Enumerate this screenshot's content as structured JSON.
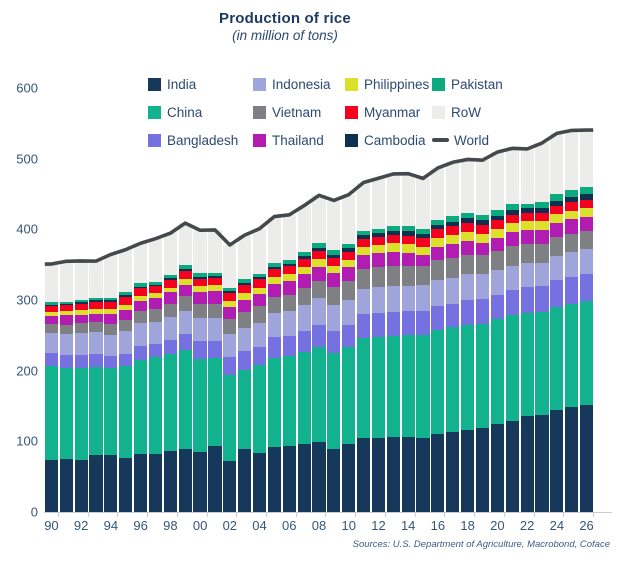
{
  "header": {
    "title": "Production of rice",
    "subtitle": "(in million of tons)"
  },
  "footer": {
    "sources": "Sources: U.S. Department of Agriculture, Macrobond, Coface"
  },
  "colors": {
    "title_text": "#1e3a5f",
    "axis_text": "#375679",
    "legend_text": "#2c4a72",
    "axis_line": "#c9cdd2",
    "background": "#ffffff"
  },
  "chart_data": {
    "type": "bar",
    "stacked": true,
    "title": "Production of rice",
    "subtitle": "(in million of tons)",
    "xlabel": "",
    "ylabel": "",
    "ylim": [
      0,
      600
    ],
    "yticks": [
      0,
      100,
      200,
      300,
      400,
      500,
      600
    ],
    "grid": false,
    "years": [
      1990,
      1991,
      1992,
      1993,
      1994,
      1995,
      1996,
      1997,
      1998,
      1999,
      2000,
      2001,
      2002,
      2003,
      2004,
      2005,
      2006,
      2007,
      2008,
      2009,
      2010,
      2011,
      2012,
      2013,
      2014,
      2015,
      2016,
      2017,
      2018,
      2019,
      2020,
      2021,
      2022,
      2023,
      2024,
      2025,
      2026
    ],
    "x_tick_labels": [
      "90",
      "92",
      "94",
      "96",
      "98",
      "00",
      "02",
      "04",
      "06",
      "08",
      "10",
      "12",
      "14",
      "16",
      "18",
      "20",
      "22",
      "24",
      "26"
    ],
    "stack_order": [
      "India",
      "China",
      "Bangladesh",
      "Indonesia",
      "Vietnam",
      "Thailand",
      "Philippines",
      "Myanmar",
      "Cambodia",
      "Pakistan",
      "RoW"
    ],
    "series": [
      {
        "name": "India",
        "color": "#16395b",
        "values": [
          74.3,
          74.7,
          72.9,
          80.3,
          81.2,
          77.0,
          81.7,
          82.5,
          86.1,
          89.7,
          85.0,
          93.3,
          71.8,
          88.5,
          83.1,
          91.8,
          93.4,
          96.7,
          99.2,
          89.1,
          96.0,
          105.3,
          105.2,
          106.6,
          105.5,
          104.4,
          109.7,
          112.8,
          116.5,
          118.9,
          124.4,
          129.5,
          135.8,
          137.8,
          145.0,
          149.0,
          152.0
        ]
      },
      {
        "name": "China",
        "color": "#13b28e",
        "values": [
          132.5,
          129.6,
          130.4,
          125.0,
          122.5,
          129.0,
          134.0,
          137.0,
          137.8,
          138.9,
          131.5,
          124.3,
          122.2,
          112.5,
          125.4,
          126.4,
          127.2,
          130.2,
          134.3,
          136.6,
          137.0,
          140.7,
          143.0,
          142.5,
          144.6,
          145.8,
          147.8,
          148.9,
          148.5,
          146.7,
          148.3,
          148.9,
          145.9,
          144.6,
          145.3,
          146.0,
          146.5
        ]
      },
      {
        "name": "Bangladesh",
        "color": "#7671e0",
        "values": [
          17.9,
          18.3,
          18.3,
          18.0,
          16.8,
          17.7,
          18.9,
          18.9,
          19.7,
          23.1,
          25.1,
          24.3,
          25.2,
          26.2,
          25.6,
          28.8,
          29.0,
          28.8,
          31.2,
          31.0,
          31.7,
          33.7,
          33.8,
          34.4,
          34.5,
          34.5,
          34.6,
          32.7,
          34.9,
          35.9,
          34.6,
          35.9,
          36.4,
          37.0,
          37.6,
          38.0,
          38.5
        ]
      },
      {
        "name": "Indonesia",
        "color": "#9fa5db",
        "values": [
          29.0,
          29.4,
          31.4,
          31.0,
          30.1,
          32.3,
          33.2,
          31.2,
          32.1,
          33.4,
          32.4,
          32.0,
          32.4,
          33.5,
          34.1,
          34.9,
          35.3,
          37.0,
          38.3,
          36.4,
          35.5,
          36.5,
          36.6,
          36.3,
          35.6,
          36.2,
          36.9,
          37.0,
          36.7,
          34.7,
          34.5,
          34.4,
          34.0,
          33.0,
          34.6,
          34.6,
          34.6
        ]
      },
      {
        "name": "Vietnam",
        "color": "#7e8083",
        "values": [
          12.4,
          13.1,
          14.0,
          14.3,
          15.5,
          16.2,
          16.8,
          17.6,
          19.4,
          20.9,
          20.5,
          21.0,
          21.5,
          21.9,
          22.7,
          22.8,
          22.9,
          24.4,
          24.4,
          25.0,
          26.4,
          27.1,
          27.5,
          28.0,
          28.2,
          27.6,
          27.4,
          27.7,
          27.3,
          27.3,
          27.4,
          27.3,
          27.0,
          26.6,
          26.5,
          26.4,
          26.3
        ]
      },
      {
        "name": "Thailand",
        "color": "#b31cb3",
        "values": [
          11.2,
          13.2,
          12.5,
          12.3,
          13.9,
          14.4,
          14.2,
          15.6,
          15.6,
          16.0,
          17.0,
          17.5,
          17.2,
          18.0,
          17.4,
          18.2,
          18.9,
          19.8,
          19.9,
          20.3,
          20.3,
          20.5,
          20.2,
          20.5,
          18.8,
          15.8,
          19.2,
          20.6,
          20.3,
          17.7,
          18.9,
          19.9,
          20.2,
          20.0,
          20.1,
          20.1,
          20.0
        ]
      },
      {
        "name": "Philippines",
        "color": "#dce02a",
        "values": [
          6.1,
          6.2,
          6.0,
          6.2,
          6.9,
          6.9,
          7.4,
          6.5,
          6.8,
          7.7,
          8.1,
          8.4,
          8.5,
          9.2,
          9.4,
          9.8,
          9.8,
          10.5,
          10.8,
          9.8,
          10.5,
          10.7,
          11.4,
          11.9,
          11.9,
          11.0,
          11.7,
          12.2,
          11.7,
          11.9,
          12.4,
          12.5,
          12.4,
          12.3,
          12.2,
          12.3,
          12.4
        ]
      },
      {
        "name": "Myanmar",
        "color": "#f5001e",
        "values": [
          8.6,
          8.2,
          9.3,
          10.4,
          11.0,
          11.2,
          10.8,
          10.3,
          10.9,
          11.6,
          10.8,
          10.9,
          11.1,
          11.9,
          12.2,
          11.0,
          11.1,
          11.3,
          11.4,
          11.2,
          11.1,
          11.5,
          11.7,
          11.9,
          12.2,
          12.2,
          12.6,
          13.0,
          13.2,
          13.1,
          12.6,
          12.3,
          12.0,
          12.0,
          12.0,
          12.0,
          12.0
        ]
      },
      {
        "name": "Cambodia",
        "color": "#0c3050",
        "values": [
          1.6,
          1.7,
          1.8,
          1.9,
          2.0,
          2.2,
          2.2,
          2.2,
          2.3,
          2.5,
          2.5,
          2.6,
          2.4,
          2.9,
          2.6,
          3.8,
          4.0,
          4.2,
          4.5,
          4.8,
          5.2,
          5.4,
          5.6,
          5.8,
          5.9,
          5.8,
          6.1,
          6.3,
          6.5,
          6.6,
          5.7,
          6.3,
          6.7,
          7.0,
          7.2,
          7.3,
          7.5
        ]
      },
      {
        "name": "Pakistan",
        "color": "#0daa80",
        "values": [
          3.3,
          3.4,
          3.1,
          4.0,
          3.4,
          4.0,
          4.3,
          4.3,
          4.7,
          5.2,
          4.8,
          3.9,
          4.5,
          4.8,
          5.0,
          5.5,
          5.4,
          5.6,
          6.9,
          6.8,
          5.0,
          6.2,
          5.8,
          6.7,
          7.0,
          6.8,
          6.9,
          7.5,
          7.3,
          7.4,
          8.4,
          9.3,
          5.5,
          9.0,
          9.9,
          10.0,
          10.2
        ]
      },
      {
        "name": "RoW",
        "color": "#ececea",
        "values": [
          54.0,
          57.0,
          55.6,
          51.6,
          61.2,
          60.4,
          56.8,
          60.7,
          59.1,
          59.8,
          61.0,
          61.0,
          61.1,
          62.4,
          63.4,
          65.1,
          63.5,
          65.1,
          67.2,
          69.9,
          70.4,
          68.7,
          71.5,
          73.8,
          74.5,
          72.0,
          74.0,
          76.2,
          76.0,
          77.6,
          82.1,
          78.3,
          77.8,
          82.8,
          85.4,
          84.3,
          80.5
        ]
      }
    ],
    "line_series": {
      "name": "World",
      "color": "#45484d",
      "values": [
        350.9,
        354.8,
        355.3,
        355.0,
        364.5,
        371.3,
        380.3,
        386.8,
        394.5,
        408.8,
        398.7,
        399.2,
        377.9,
        391.8,
        400.9,
        418.1,
        420.5,
        433.6,
        448.1,
        440.9,
        449.1,
        466.3,
        472.3,
        478.4,
        478.7,
        472.1,
        486.9,
        494.9,
        498.9,
        497.8,
        509.3,
        514.6,
        513.7,
        522.1,
        535.8,
        540.0,
        540.5
      ]
    },
    "legend_rows": [
      [
        "India",
        "Indonesia",
        "Philippines",
        "Pakistan"
      ],
      [
        "China",
        "Vietnam",
        "Myanmar",
        "RoW"
      ],
      [
        "Bangladesh",
        "Thailand",
        "Cambodia",
        "World"
      ]
    ],
    "legend_col_widths": [
      105,
      92,
      87,
      90
    ],
    "legend_position": "top"
  }
}
